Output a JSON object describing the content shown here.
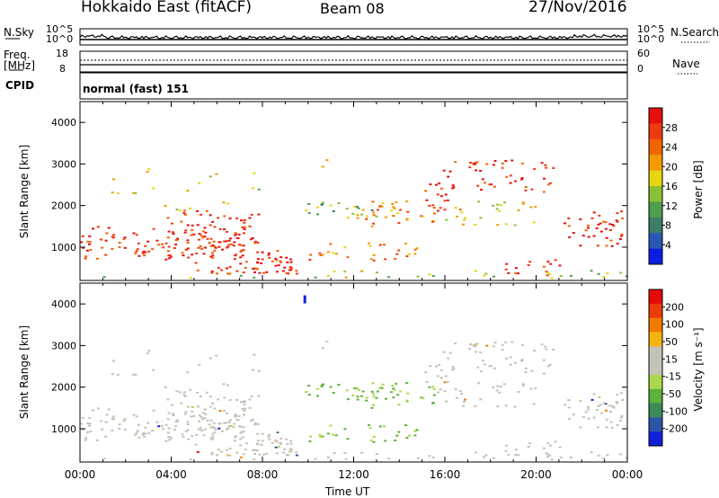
{
  "header": {
    "station": "Hokkaido East (fitACF)",
    "beam": "Beam 08",
    "date": "27/Nov/2016"
  },
  "top_panels": {
    "nsky": {
      "label": "N.Sky",
      "ticks": [
        "10^5",
        "10^0"
      ]
    },
    "nsearch": {
      "label": "N.Search",
      "ticks": [
        "10^5",
        "10^0"
      ]
    },
    "freq": {
      "label_line1": "Freq.",
      "label_line2": "[MHz]",
      "ticks": [
        "18",
        "8"
      ]
    },
    "nave": {
      "label": "Nave",
      "ticks": [
        "60",
        "0"
      ]
    },
    "cpid": {
      "label": "CPID",
      "value": "normal (fast) 151"
    }
  },
  "chart_data": [
    {
      "type": "heatmap",
      "name": "power",
      "ylabel": "Slant Range [km]",
      "xlabel": "Time UT",
      "ylim": [
        200,
        4500
      ],
      "xlim": [
        0,
        24
      ],
      "yticks": [
        "1000",
        "2000",
        "3000",
        "4000"
      ],
      "xticks": [
        "00:00",
        "04:00",
        "08:00",
        "12:00",
        "16:00",
        "20:00",
        "00:00"
      ],
      "colorbar": {
        "label": "Power [dB]",
        "ticks": [
          "28",
          "24",
          "20",
          "16",
          "12",
          "8",
          "4"
        ],
        "colors": [
          "#0a1ee0",
          "#2a56b4",
          "#3d7d6a",
          "#4f9e4e",
          "#88c036",
          "#e8d410",
          "#f29a00",
          "#f06400",
          "#ee3a10",
          "#e60f0f"
        ]
      }
    },
    {
      "type": "heatmap",
      "name": "velocity",
      "ylabel": "Slant Range [km]",
      "xlabel": "Time UT",
      "ylim": [
        200,
        4500
      ],
      "xlim": [
        0,
        24
      ],
      "yticks": [
        "1000",
        "2000",
        "3000",
        "4000"
      ],
      "xticks": [
        "00:00",
        "04:00",
        "08:00",
        "12:00",
        "16:00",
        "20:00",
        "00:00"
      ],
      "colorbar": {
        "label": "Velocity [m s⁻¹]",
        "ticks": [
          "200",
          "100",
          "50",
          "15",
          "-15",
          "-50",
          "-100",
          "-200"
        ],
        "colors": [
          "#1020d8",
          "#2d55a6",
          "#3c8a58",
          "#5cb23c",
          "#a9d84a",
          "#c4c2b6",
          "#c4c2b6",
          "#f4b410",
          "#f07a00",
          "#ec3c0a",
          "#e40a0a"
        ]
      }
    }
  ],
  "xaxis_title": "Time UT"
}
